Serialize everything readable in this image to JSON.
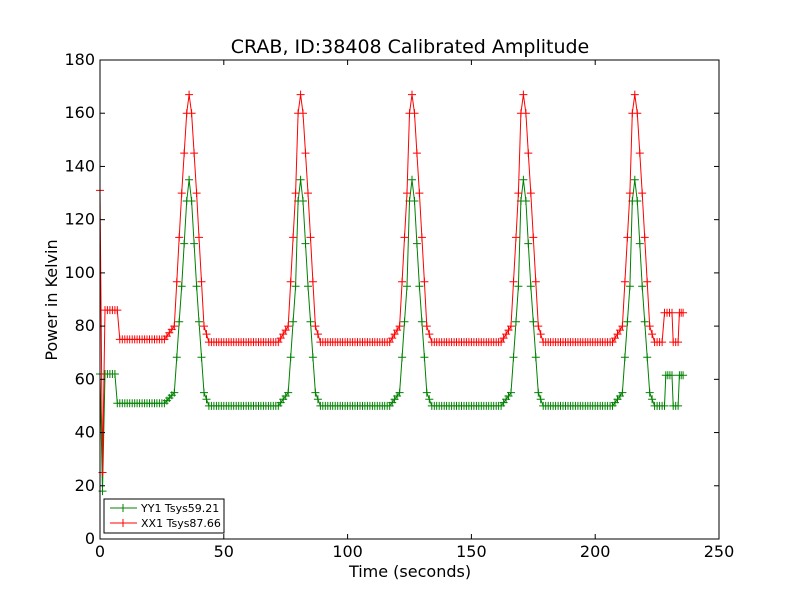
{
  "chart_data": {
    "type": "line",
    "title": "CRAB, ID:38408 Calibrated Amplitude",
    "xlabel": "Time (seconds)",
    "ylabel": "Power in Kelvin",
    "xlim": [
      0,
      250
    ],
    "ylim": [
      0,
      180
    ],
    "xticks": [
      0,
      50,
      100,
      150,
      200,
      250
    ],
    "yticks": [
      0,
      20,
      40,
      60,
      80,
      100,
      120,
      140,
      160,
      180
    ],
    "grid": false,
    "legend_position": "lower-left",
    "series": [
      {
        "name": "YY1 Tsys59.21",
        "color": "#008000",
        "marker": "+",
        "points": [
          [
            0,
            62
          ],
          [
            1,
            18
          ],
          [
            2,
            62
          ],
          [
            6,
            62
          ],
          [
            7,
            51
          ],
          [
            26,
            51
          ],
          [
            30,
            55
          ],
          [
            33,
            95
          ],
          [
            35,
            127
          ],
          [
            36,
            135
          ],
          [
            37,
            127
          ],
          [
            39,
            95
          ],
          [
            42,
            55
          ],
          [
            44,
            50
          ],
          [
            72,
            50
          ],
          [
            76,
            55
          ],
          [
            79,
            95
          ],
          [
            80,
            127
          ],
          [
            81,
            135
          ],
          [
            82,
            127
          ],
          [
            84,
            95
          ],
          [
            87,
            55
          ],
          [
            89,
            50
          ],
          [
            117,
            50
          ],
          [
            121,
            55
          ],
          [
            124,
            95
          ],
          [
            125,
            127
          ],
          [
            126,
            135
          ],
          [
            127,
            127
          ],
          [
            129,
            95
          ],
          [
            132,
            55
          ],
          [
            134,
            50
          ],
          [
            162,
            50
          ],
          [
            166,
            55
          ],
          [
            169,
            95
          ],
          [
            170,
            127
          ],
          [
            171,
            135
          ],
          [
            172,
            127
          ],
          [
            174,
            95
          ],
          [
            177,
            55
          ],
          [
            179,
            50
          ],
          [
            207,
            50
          ],
          [
            211,
            55
          ],
          [
            214,
            95
          ],
          [
            215,
            127
          ],
          [
            216,
            135
          ],
          [
            217,
            127
          ],
          [
            219,
            95
          ],
          [
            222,
            55
          ],
          [
            224,
            50
          ],
          [
            228,
            50
          ],
          [
            228.5,
            61.5
          ],
          [
            231,
            61.5
          ],
          [
            231.5,
            50
          ],
          [
            233.5,
            50
          ],
          [
            234,
            61.5
          ],
          [
            235.5,
            61.5
          ]
        ]
      },
      {
        "name": "XX1 Tsys87.66",
        "color": "#ff0000",
        "marker": "+",
        "points": [
          [
            0,
            131
          ],
          [
            1,
            25
          ],
          [
            2,
            86
          ],
          [
            7,
            86
          ],
          [
            8,
            75
          ],
          [
            26,
            75
          ],
          [
            30,
            80
          ],
          [
            33,
            130
          ],
          [
            35,
            160
          ],
          [
            36,
            167
          ],
          [
            37,
            160
          ],
          [
            39,
            130
          ],
          [
            42,
            80
          ],
          [
            44,
            74
          ],
          [
            72,
            74
          ],
          [
            76,
            80
          ],
          [
            79,
            130
          ],
          [
            80,
            160
          ],
          [
            81,
            167
          ],
          [
            82,
            160
          ],
          [
            84,
            130
          ],
          [
            87,
            80
          ],
          [
            89,
            74
          ],
          [
            117,
            74
          ],
          [
            121,
            80
          ],
          [
            124,
            130
          ],
          [
            125,
            160
          ],
          [
            126,
            167
          ],
          [
            127,
            160
          ],
          [
            129,
            130
          ],
          [
            132,
            80
          ],
          [
            134,
            74
          ],
          [
            162,
            74
          ],
          [
            166,
            80
          ],
          [
            169,
            130
          ],
          [
            170,
            160
          ],
          [
            171,
            167
          ],
          [
            172,
            160
          ],
          [
            174,
            130
          ],
          [
            177,
            80
          ],
          [
            179,
            74
          ],
          [
            207,
            74
          ],
          [
            211,
            80
          ],
          [
            214,
            130
          ],
          [
            215,
            160
          ],
          [
            216,
            167
          ],
          [
            217,
            160
          ],
          [
            219,
            130
          ],
          [
            222,
            80
          ],
          [
            224,
            74
          ],
          [
            227,
            74
          ],
          [
            228,
            85
          ],
          [
            231,
            85
          ],
          [
            231.5,
            74
          ],
          [
            233.5,
            74
          ],
          [
            234,
            85
          ],
          [
            235.5,
            85
          ]
        ]
      }
    ]
  }
}
